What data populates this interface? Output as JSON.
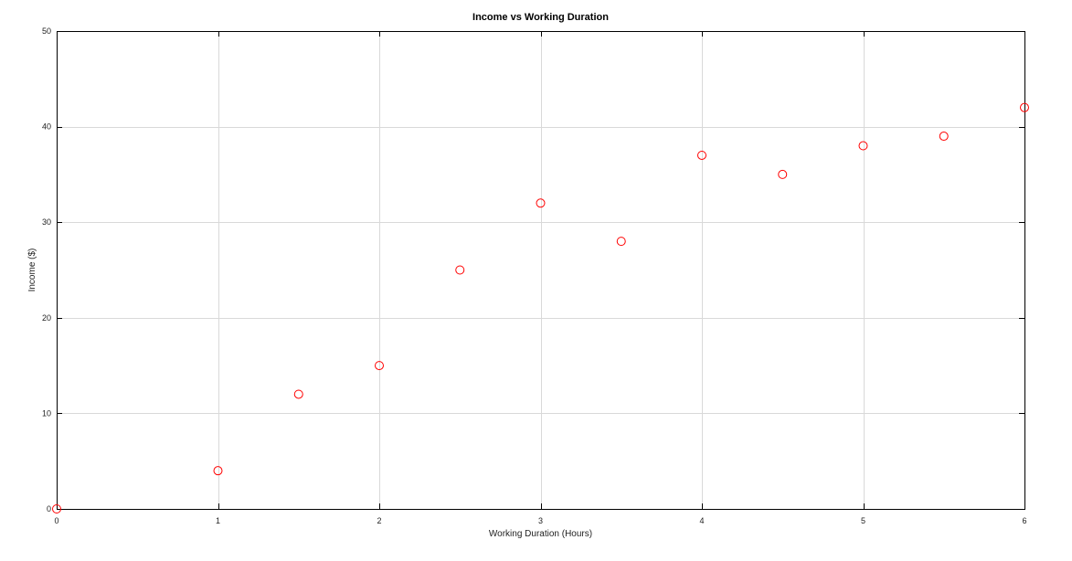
{
  "chart_data": {
    "type": "scatter",
    "title": "Income vs Working Duration",
    "xlabel": "Working Duration (Hours)",
    "ylabel": "Income ($)",
    "xlim": [
      0,
      6
    ],
    "ylim": [
      0,
      50
    ],
    "xticks": [
      0,
      1,
      2,
      3,
      4,
      5,
      6
    ],
    "yticks": [
      0,
      10,
      20,
      30,
      40,
      50
    ],
    "grid": true,
    "marker": "open-circle",
    "marker_color": "#ff0000",
    "series": [
      {
        "x": [
          0,
          1,
          1.5,
          2,
          2.5,
          3,
          3.5,
          4,
          4.5,
          5,
          5.5,
          6
        ],
        "y": [
          0,
          4,
          12,
          15,
          25,
          32,
          28,
          37,
          35,
          38,
          39,
          42
        ]
      }
    ]
  }
}
